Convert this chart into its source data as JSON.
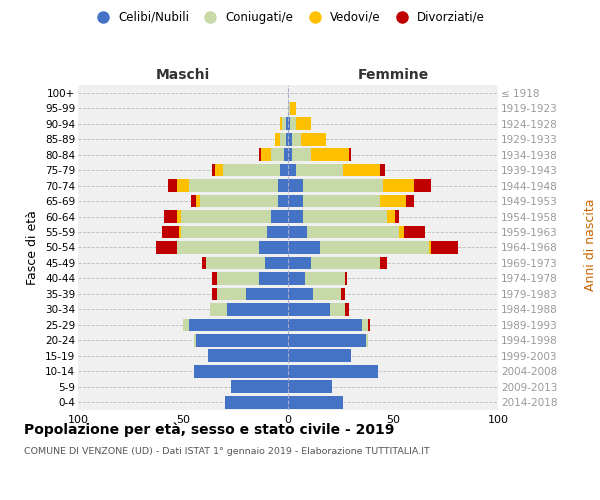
{
  "age_groups": [
    "0-4",
    "5-9",
    "10-14",
    "15-19",
    "20-24",
    "25-29",
    "30-34",
    "35-39",
    "40-44",
    "45-49",
    "50-54",
    "55-59",
    "60-64",
    "65-69",
    "70-74",
    "75-79",
    "80-84",
    "85-89",
    "90-94",
    "95-99",
    "100+"
  ],
  "birth_years": [
    "2014-2018",
    "2009-2013",
    "2004-2008",
    "1999-2003",
    "1994-1998",
    "1989-1993",
    "1984-1988",
    "1979-1983",
    "1974-1978",
    "1969-1973",
    "1964-1968",
    "1959-1963",
    "1954-1958",
    "1949-1953",
    "1944-1948",
    "1939-1943",
    "1934-1938",
    "1929-1933",
    "1924-1928",
    "1919-1923",
    "≤ 1918"
  ],
  "males_celibe": [
    30,
    27,
    45,
    38,
    44,
    47,
    29,
    20,
    14,
    11,
    14,
    10,
    8,
    5,
    5,
    4,
    2,
    1,
    1,
    0,
    0
  ],
  "males_coniugato": [
    0,
    0,
    0,
    0,
    1,
    3,
    8,
    14,
    20,
    28,
    39,
    41,
    43,
    37,
    42,
    27,
    6,
    3,
    2,
    0,
    0
  ],
  "males_vedovo": [
    0,
    0,
    0,
    0,
    0,
    0,
    0,
    0,
    0,
    0,
    0,
    1,
    2,
    2,
    6,
    4,
    5,
    2,
    1,
    0,
    0
  ],
  "males_divorziato": [
    0,
    0,
    0,
    0,
    0,
    0,
    0,
    2,
    2,
    2,
    10,
    8,
    6,
    2,
    4,
    1,
    1,
    0,
    0,
    0,
    0
  ],
  "females_nubile": [
    26,
    21,
    43,
    30,
    37,
    35,
    20,
    12,
    8,
    11,
    15,
    9,
    7,
    7,
    7,
    4,
    2,
    2,
    1,
    0,
    0
  ],
  "females_coniugata": [
    0,
    0,
    0,
    0,
    1,
    3,
    7,
    13,
    19,
    33,
    52,
    44,
    40,
    37,
    38,
    22,
    9,
    4,
    3,
    1,
    0
  ],
  "females_vedova": [
    0,
    0,
    0,
    0,
    0,
    0,
    0,
    0,
    0,
    0,
    1,
    2,
    4,
    12,
    15,
    18,
    18,
    12,
    7,
    3,
    0
  ],
  "females_divorziata": [
    0,
    0,
    0,
    0,
    0,
    1,
    2,
    2,
    1,
    3,
    13,
    10,
    2,
    4,
    8,
    2,
    1,
    0,
    0,
    0,
    0
  ],
  "color_celibe": "#4472c4",
  "color_coniugato": "#c8d9a8",
  "color_vedovo": "#ffc000",
  "color_divorziato": "#c00000",
  "legend_labels": [
    "Celibi/Nubili",
    "Coniugati/e",
    "Vedovi/e",
    "Divorziati/e"
  ],
  "title": "Popolazione per età, sesso e stato civile - 2019",
  "subtitle": "COMUNE DI VENZONE (UD) - Dati ISTAT 1° gennaio 2019 - Elaborazione TUTTITALIA.IT",
  "label_maschi": "Maschi",
  "label_femmine": "Femmine",
  "ylabel_left": "Fasce di età",
  "ylabel_right": "Anni di nascita",
  "xlim": 100,
  "bg_color": "#ffffff",
  "plot_bg": "#f0f0f0",
  "grid_color": "#cccccc"
}
